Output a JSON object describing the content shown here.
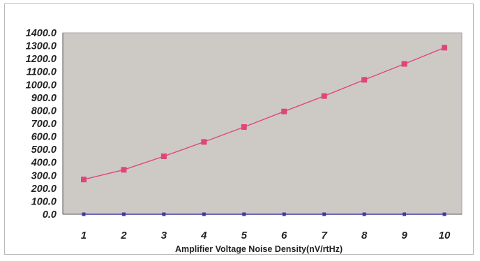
{
  "chart_data": {
    "type": "line",
    "title": "",
    "xlabel": "Amplifier Voltage Noise Density(nV/rtHz)",
    "ylabel": "",
    "categories": [
      "1",
      "2",
      "3",
      "4",
      "5",
      "6",
      "7",
      "8",
      "9",
      "10"
    ],
    "ylim": [
      0,
      1400
    ],
    "yticks": [
      0,
      100,
      200,
      300,
      400,
      500,
      600,
      700,
      800,
      900,
      1000,
      1100,
      1200,
      1300,
      1400
    ],
    "ytick_labels": [
      "0.0",
      "100.0",
      "200.0",
      "300.0",
      "400.0",
      "500.0",
      "600.0",
      "700.0",
      "800.0",
      "900.0",
      "1000.0",
      "1100.0",
      "1200.0",
      "1300.0",
      "1400.0"
    ],
    "grid": false,
    "legend": "none",
    "plot_background": "#cdcac6",
    "series": [
      {
        "values": [
          268,
          343,
          447,
          558,
          673,
          793,
          912,
          1037,
          1160,
          1285
        ],
        "color": "#e0457a",
        "marker": "square"
      },
      {
        "values": [
          0,
          0,
          0,
          0,
          0,
          0,
          0,
          0,
          0,
          0
        ],
        "color": "#3a3aa0",
        "marker": "square"
      }
    ]
  }
}
